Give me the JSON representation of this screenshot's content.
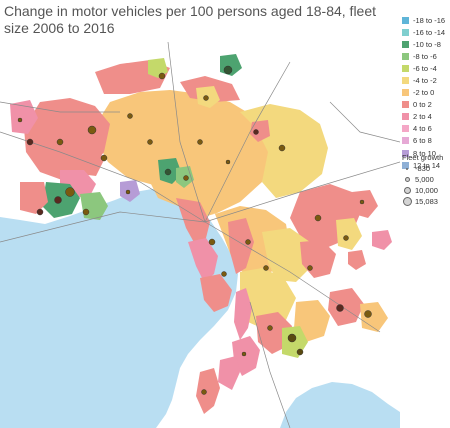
{
  "title": "Change in motor vehicles per 100 persons aged 18-84, fleet size 2006 to 2016",
  "colors": {
    "bay": "#b9def2",
    "background": "#ffffff",
    "road": "#8a8a8a",
    "dot_fill": "#7a5a10",
    "dot_edge": "#333333"
  },
  "color_legend": {
    "items": [
      {
        "label": "-18 to -16",
        "color": "#5fb5d8"
      },
      {
        "label": "-16 to -14",
        "color": "#7fcfcf"
      },
      {
        "label": "-10 to -8",
        "color": "#4da370"
      },
      {
        "label": "-8 to -6",
        "color": "#8cc77e"
      },
      {
        "label": "-6 to -4",
        "color": "#c4d96a"
      },
      {
        "label": "-4 to -2",
        "color": "#f3d97e"
      },
      {
        "label": "-2 to 0",
        "color": "#f8c67a"
      },
      {
        "label": "0 to 2",
        "color": "#ef8e8a"
      },
      {
        "label": "2 to 4",
        "color": "#f091a8"
      },
      {
        "label": "4 to 6",
        "color": "#f4a7c6"
      },
      {
        "label": "6 to 8",
        "color": "#e6a9d5"
      },
      {
        "label": "8 to 10",
        "color": "#b69cd6"
      },
      {
        "label": "12 to 14",
        "color": "#8fb0d6"
      }
    ]
  },
  "size_legend": {
    "title": "Fleet growth",
    "items": [
      {
        "label": "-830"
      },
      {
        "label": "5,000"
      },
      {
        "label": "10,000"
      },
      {
        "label": "15,083"
      }
    ]
  }
}
